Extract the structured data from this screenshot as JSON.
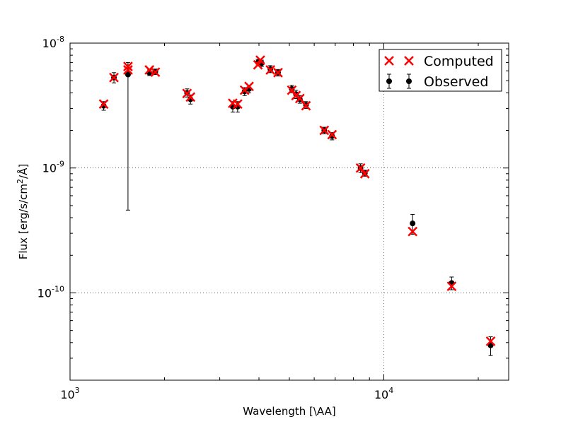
{
  "chart_data": {
    "type": "scatter",
    "xscale": "log",
    "yscale": "log",
    "xlim": [
      1000,
      25000
    ],
    "ylim": [
      2e-11,
      1e-08
    ],
    "xlabel": "Wavelength [\\AA]",
    "ylabel": "Flux [erg/s/cm$^2$/\\AA]",
    "ylabel_parts": {
      "pre": "Flux [erg/s/cm",
      "sup": "2",
      "post": "/Å]"
    },
    "grid": true,
    "legend_position": "top-right",
    "x_ticks": [
      {
        "value": 1000,
        "base": "10",
        "exp": "3"
      },
      {
        "value": 10000,
        "base": "10",
        "exp": "4"
      }
    ],
    "y_ticks": [
      {
        "value": 1e-10,
        "base": "10",
        "exp": "-10"
      },
      {
        "value": 1e-09,
        "base": "10",
        "exp": "-9"
      },
      {
        "value": 1e-08,
        "base": "10",
        "exp": "-8"
      }
    ],
    "series": [
      {
        "name": "Observed",
        "marker": "circle",
        "color": "#000000",
        "points": [
          {
            "x": 1280,
            "y": 3.15e-09,
            "err": 2.5e-10
          },
          {
            "x": 1380,
            "y": 5.3e-09,
            "err": 5e-10
          },
          {
            "x": 1530,
            "y": 5.6e-09,
            "lo": 4.6e-10,
            "hi": 7e-09
          },
          {
            "x": 1790,
            "y": 5.8e-09,
            "err": 3e-10
          },
          {
            "x": 1870,
            "y": 5.9e-09,
            "err": 3e-10
          },
          {
            "x": 2360,
            "y": 4e-09,
            "err": 3e-10
          },
          {
            "x": 2420,
            "y": 3.55e-09,
            "err": 3e-10
          },
          {
            "x": 3300,
            "y": 3.1e-09,
            "err": 3e-10
          },
          {
            "x": 3420,
            "y": 3.1e-09,
            "err": 3e-10
          },
          {
            "x": 3600,
            "y": 4.1e-09,
            "err": 3e-10
          },
          {
            "x": 3720,
            "y": 4.3e-09,
            "err": 3e-10
          },
          {
            "x": 3970,
            "y": 7e-09,
            "err": 4e-10
          },
          {
            "x": 4080,
            "y": 6.9e-09,
            "err": 4e-10
          },
          {
            "x": 4350,
            "y": 6.2e-09,
            "err": 4e-10
          },
          {
            "x": 4600,
            "y": 5.8e-09,
            "err": 3.5e-10
          },
          {
            "x": 5090,
            "y": 4.3e-09,
            "err": 3e-10
          },
          {
            "x": 5250,
            "y": 3.9e-09,
            "err": 3e-10
          },
          {
            "x": 5400,
            "y": 3.55e-09,
            "err": 2.5e-10
          },
          {
            "x": 5650,
            "y": 3.2e-09,
            "err": 2e-10
          },
          {
            "x": 6460,
            "y": 2e-09,
            "err": 1.2e-10
          },
          {
            "x": 6840,
            "y": 1.8e-09,
            "err": 1.2e-10
          },
          {
            "x": 8430,
            "y": 1e-09,
            "err": 8e-11
          },
          {
            "x": 8700,
            "y": 9.1e-10,
            "err": 5e-11
          },
          {
            "x": 12350,
            "y": 3.6e-10,
            "err": 6.5e-11
          },
          {
            "x": 16450,
            "y": 1.2e-10,
            "err": 1.4e-11
          },
          {
            "x": 21900,
            "y": 3.8e-11,
            "err": 6.5e-12
          }
        ]
      },
      {
        "name": "Computed",
        "marker": "x",
        "color": "#ff0000",
        "points": [
          {
            "x": 1280,
            "y": 3.25e-09
          },
          {
            "x": 1380,
            "y": 5.3e-09
          },
          {
            "x": 1530,
            "y": 6.5e-09
          },
          {
            "x": 1530,
            "y": 6.1e-09
          },
          {
            "x": 1790,
            "y": 6.1e-09
          },
          {
            "x": 1870,
            "y": 5.85e-09
          },
          {
            "x": 2360,
            "y": 3.95e-09
          },
          {
            "x": 2420,
            "y": 3.7e-09
          },
          {
            "x": 3300,
            "y": 3.3e-09
          },
          {
            "x": 3420,
            "y": 3.25e-09
          },
          {
            "x": 3600,
            "y": 4.2e-09
          },
          {
            "x": 3720,
            "y": 4.5e-09
          },
          {
            "x": 3970,
            "y": 6.7e-09
          },
          {
            "x": 4040,
            "y": 7.3e-09
          },
          {
            "x": 4350,
            "y": 6.1e-09
          },
          {
            "x": 4600,
            "y": 5.8e-09
          },
          {
            "x": 5090,
            "y": 4.2e-09
          },
          {
            "x": 5250,
            "y": 3.8e-09
          },
          {
            "x": 5400,
            "y": 3.6e-09
          },
          {
            "x": 5650,
            "y": 3.15e-09
          },
          {
            "x": 6460,
            "y": 2e-09
          },
          {
            "x": 6840,
            "y": 1.85e-09
          },
          {
            "x": 8430,
            "y": 1e-09
          },
          {
            "x": 8700,
            "y": 9e-10
          },
          {
            "x": 12350,
            "y": 3.1e-10
          },
          {
            "x": 16450,
            "y": 1.13e-10
          },
          {
            "x": 21900,
            "y": 4.1e-11
          }
        ]
      }
    ],
    "legend": [
      {
        "label": "Computed",
        "marker": "x",
        "color": "#ff0000"
      },
      {
        "label": "Observed",
        "marker": "circle",
        "color": "#000000"
      }
    ]
  }
}
